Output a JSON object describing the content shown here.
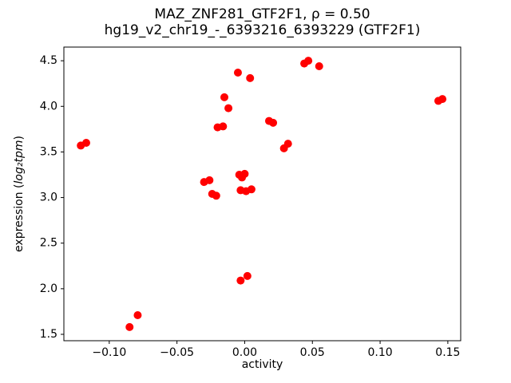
{
  "chart_data": {
    "type": "scatter",
    "title_line1": "MAZ_ZNF281_GTF2F1, ρ = 0.50",
    "title_line2": "hg19_v2_chr19_-_6393216_6393229 (GTF2F1)",
    "xlabel": "activity",
    "ylabel_parts": [
      "expression (",
      "log₂tpm",
      ")"
    ],
    "marker_color": "#ff0000",
    "grid": false,
    "legend": "none",
    "xlim": [
      -0.1335,
      0.1595
    ],
    "ylim": [
      1.43,
      4.65
    ],
    "xticks": [
      -0.1,
      -0.05,
      0.0,
      0.05,
      0.1,
      0.15
    ],
    "xtick_labels": [
      "−0.10",
      "−0.05",
      "0.00",
      "0.05",
      "0.10",
      "0.15"
    ],
    "yticks": [
      1.5,
      2.0,
      2.5,
      3.0,
      3.5,
      4.0,
      4.5
    ],
    "ytick_labels": [
      "1.5",
      "2.0",
      "2.5",
      "3.0",
      "3.5",
      "4.0",
      "4.5"
    ],
    "points": [
      [
        -0.121,
        3.57
      ],
      [
        -0.117,
        3.6
      ],
      [
        -0.085,
        1.58
      ],
      [
        -0.079,
        1.71
      ],
      [
        -0.03,
        3.17
      ],
      [
        -0.026,
        3.19
      ],
      [
        -0.024,
        3.04
      ],
      [
        -0.021,
        3.02
      ],
      [
        -0.02,
        3.77
      ],
      [
        -0.016,
        3.78
      ],
      [
        -0.015,
        4.1
      ],
      [
        -0.012,
        3.98
      ],
      [
        -0.005,
        4.37
      ],
      [
        -0.004,
        3.25
      ],
      [
        -0.002,
        3.22
      ],
      [
        0.0,
        3.26
      ],
      [
        -0.003,
        3.08
      ],
      [
        0.001,
        3.07
      ],
      [
        -0.003,
        2.09
      ],
      [
        0.002,
        2.14
      ],
      [
        0.004,
        4.31
      ],
      [
        0.005,
        3.09
      ],
      [
        0.018,
        3.84
      ],
      [
        0.021,
        3.82
      ],
      [
        0.029,
        3.54
      ],
      [
        0.032,
        3.59
      ],
      [
        0.044,
        4.47
      ],
      [
        0.047,
        4.5
      ],
      [
        0.055,
        4.44
      ],
      [
        0.143,
        4.06
      ],
      [
        0.146,
        4.08
      ]
    ]
  }
}
